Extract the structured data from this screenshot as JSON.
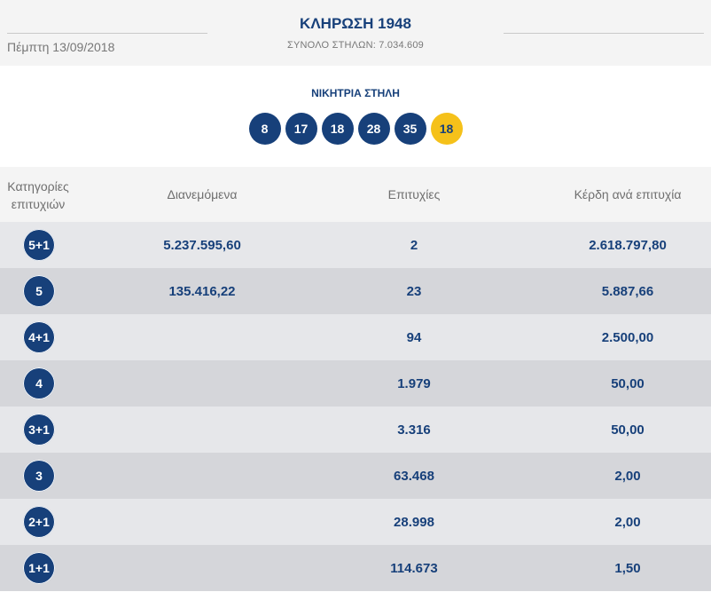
{
  "header": {
    "date": "Πέμπτη 13/09/2018",
    "title": "ΚΛΗΡΩΣΗ 1948",
    "subtitle": "ΣΥΝΟΛΟ ΣΤΗΛΩΝ: 7.034.609"
  },
  "winning": {
    "label": "ΝΙΚΗΤΡΙΑ ΣΤΗΛΗ",
    "numbers": [
      "8",
      "17",
      "18",
      "28",
      "35"
    ],
    "joker": "18"
  },
  "table": {
    "headers": {
      "category": "Κατηγορίες επιτυχιών",
      "distributed": "Διανεμόμενα",
      "successes": "Επιτυχίες",
      "prize": "Κέρδη ανά επιτυχία"
    },
    "rows": [
      {
        "category": "5+1",
        "distributed": "5.237.595,60",
        "successes": "2",
        "prize": "2.618.797,80"
      },
      {
        "category": "5",
        "distributed": "135.416,22",
        "successes": "23",
        "prize": "5.887,66"
      },
      {
        "category": "4+1",
        "distributed": "",
        "successes": "94",
        "prize": "2.500,00"
      },
      {
        "category": "4",
        "distributed": "",
        "successes": "1.979",
        "prize": "50,00"
      },
      {
        "category": "3+1",
        "distributed": "",
        "successes": "3.316",
        "prize": "50,00"
      },
      {
        "category": "3",
        "distributed": "",
        "successes": "63.468",
        "prize": "2,00"
      },
      {
        "category": "2+1",
        "distributed": "",
        "successes": "28.998",
        "prize": "2,00"
      },
      {
        "category": "1+1",
        "distributed": "",
        "successes": "114.673",
        "prize": "1,50"
      }
    ]
  },
  "colors": {
    "primary": "#17407a",
    "joker": "#f5c11a",
    "row_light": "#e6e7ea",
    "row_dark": "#d5d6da",
    "header_bg": "#f4f4f4"
  }
}
